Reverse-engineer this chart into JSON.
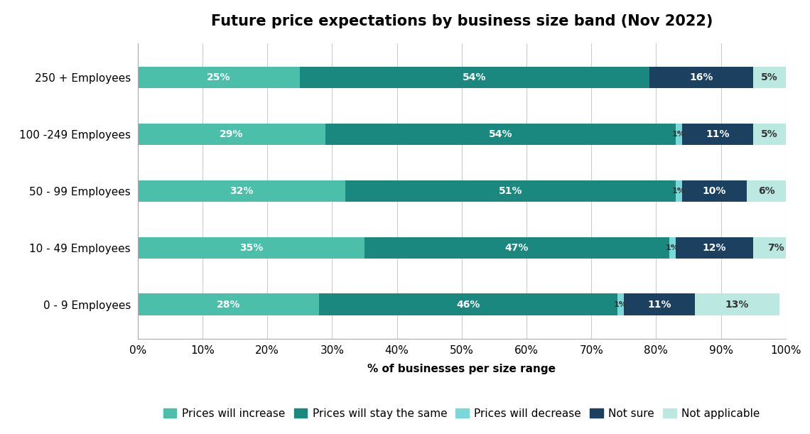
{
  "title": "Future price expectations by business size band (Nov 2022)",
  "categories": [
    "0 - 9 Employees",
    "10 - 49 Employees",
    "50 - 99 Employees",
    "100 -249 Employees",
    "250 + Employees"
  ],
  "series": {
    "Prices will increase": [
      28,
      35,
      32,
      29,
      25
    ],
    "Prices will stay the same": [
      46,
      47,
      51,
      54,
      54
    ],
    "Prices will decrease": [
      1,
      1,
      1,
      1,
      0
    ],
    "Not sure": [
      11,
      12,
      10,
      11,
      16
    ],
    "Not applicable": [
      13,
      7,
      6,
      5,
      5
    ]
  },
  "colors": {
    "Prices will increase": "#4bbfaa",
    "Prices will stay the same": "#1b8880",
    "Prices will decrease": "#7ad8d8",
    "Not sure": "#1c4060",
    "Not applicable": "#bbe8e0"
  },
  "xlabel": "% of businesses per size range",
  "xlim": [
    0,
    100
  ],
  "xticks": [
    0,
    10,
    20,
    30,
    40,
    50,
    60,
    70,
    80,
    90,
    100
  ],
  "xtick_labels": [
    "0%",
    "10%",
    "20%",
    "30%",
    "40%",
    "50%",
    "60%",
    "70%",
    "80%",
    "90%",
    "100%"
  ],
  "bar_height": 0.38,
  "title_fontsize": 15,
  "label_fontsize": 11,
  "tick_fontsize": 11,
  "legend_fontsize": 11,
  "background_color": "#ffffff"
}
